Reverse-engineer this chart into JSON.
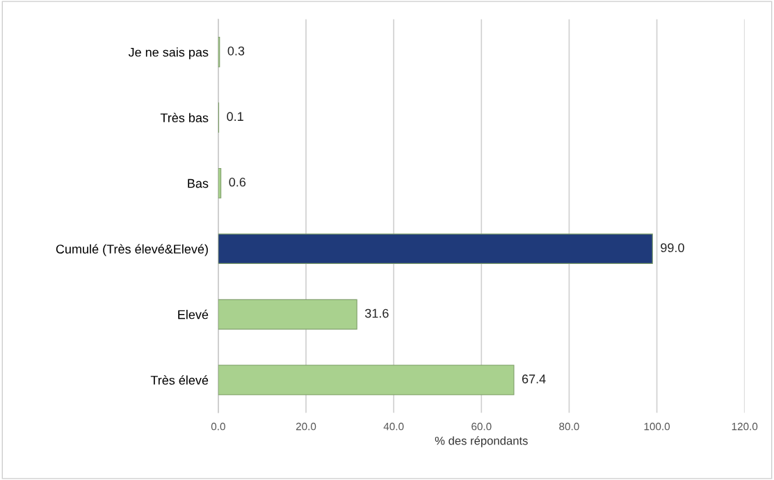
{
  "chart_data": {
    "type": "bar",
    "orientation": "horizontal",
    "xlabel": "% des répondants",
    "categories": [
      "Je ne sais pas",
      "Très bas",
      "Bas",
      "Cumulé (Très élevé&Elevé)",
      "Elevé",
      "Très élevé"
    ],
    "values": [
      0.3,
      0.1,
      0.6,
      99.0,
      31.6,
      67.4
    ],
    "colors": [
      "#a9d18e",
      "#a9d18e",
      "#a9d18e",
      "#1f3a7a",
      "#a9d18e",
      "#a9d18e"
    ],
    "value_labels": [
      "0.3",
      "0.1",
      "0.6",
      "99.0",
      "31.6",
      "67.4"
    ],
    "xlim": [
      0,
      120
    ],
    "xticks": [
      {
        "value": 0,
        "label": "0.0"
      },
      {
        "value": 20,
        "label": "20.0"
      },
      {
        "value": 40,
        "label": "40.0"
      },
      {
        "value": 60,
        "label": "60.0"
      },
      {
        "value": 80,
        "label": "80.0"
      },
      {
        "value": 100,
        "label": "100.0"
      },
      {
        "value": 120,
        "label": "120.0"
      }
    ],
    "grid": "x",
    "legend": false
  }
}
